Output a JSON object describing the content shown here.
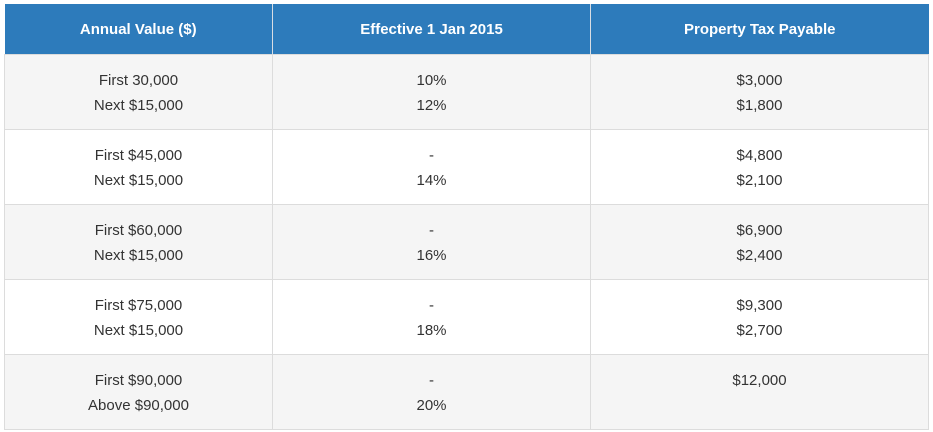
{
  "table": {
    "header": [
      "Annual Value ($)",
      "Effective 1 Jan 2015",
      "Property Tax Payable"
    ],
    "rows": [
      [
        [
          "First 30,000",
          "Next $15,000"
        ],
        [
          "10%",
          "12%"
        ],
        [
          "$3,000",
          "$1,800"
        ]
      ],
      [
        [
          "First $45,000",
          "Next $15,000"
        ],
        [
          "-",
          "14%"
        ],
        [
          "$4,800",
          "$2,100"
        ]
      ],
      [
        [
          "First $60,000",
          "Next $15,000"
        ],
        [
          "-",
          "16%"
        ],
        [
          "$6,900",
          "$2,400"
        ]
      ],
      [
        [
          "First $75,000",
          "Next $15,000"
        ],
        [
          "-",
          "18%"
        ],
        [
          "$9,300",
          "$2,700"
        ]
      ],
      [
        [
          "First $90,000",
          "Above $90,000"
        ],
        [
          "-",
          "20%"
        ],
        [
          "$12,000"
        ]
      ]
    ]
  }
}
